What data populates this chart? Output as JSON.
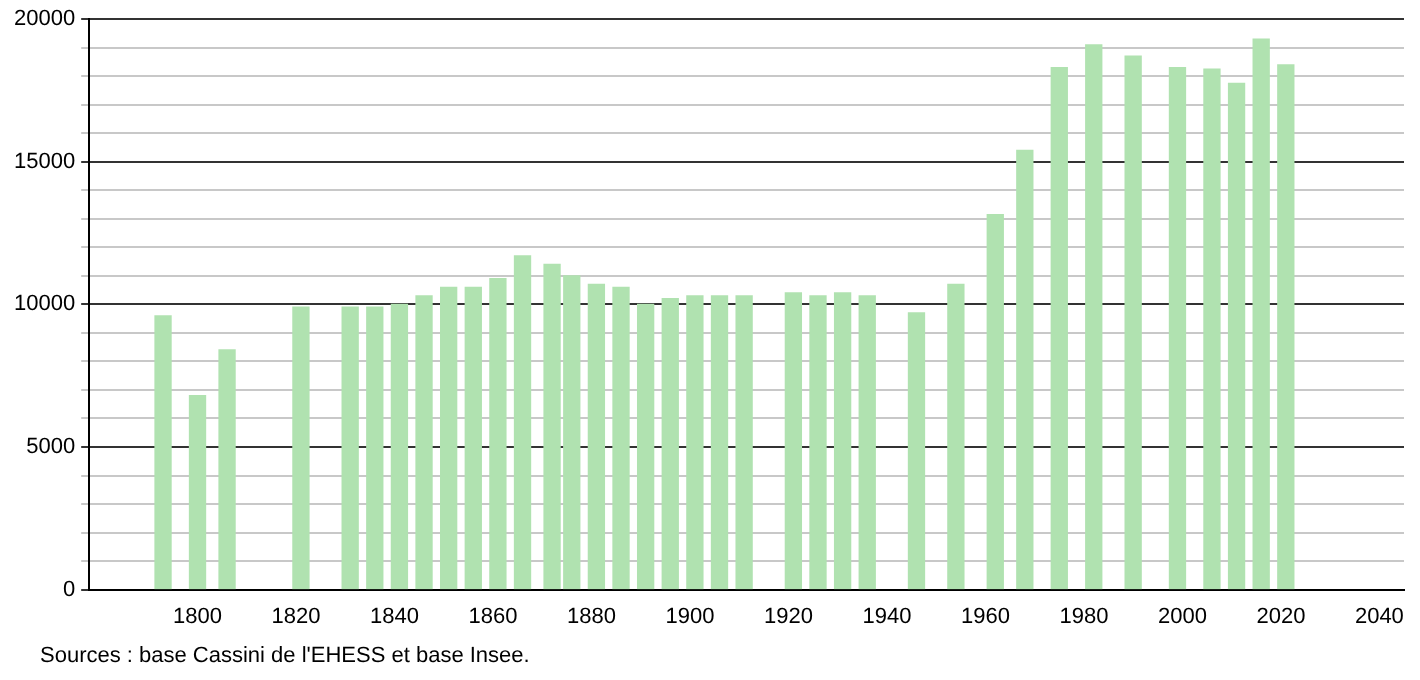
{
  "chart_data": {
    "type": "bar",
    "x": [
      1793,
      1800,
      1806,
      1821,
      1831,
      1836,
      1841,
      1846,
      1851,
      1856,
      1861,
      1866,
      1872,
      1876,
      1881,
      1886,
      1891,
      1896,
      1901,
      1906,
      1911,
      1921,
      1926,
      1931,
      1936,
      1946,
      1954,
      1962,
      1968,
      1975,
      1982,
      1990,
      1999,
      2006,
      2011,
      2016,
      2021
    ],
    "values": [
      9600,
      6800,
      8400,
      9900,
      9900,
      9900,
      10000,
      10300,
      10600,
      10600,
      10900,
      11700,
      11400,
      11000,
      10700,
      10600,
      10000,
      10200,
      10300,
      10300,
      10300,
      10400,
      10300,
      10400,
      10300,
      9700,
      10700,
      13150,
      15400,
      18300,
      19100,
      18700,
      18300,
      18250,
      17750,
      19300,
      18400
    ],
    "color": "#b0e2b0",
    "xlim": [
      1778,
      2045
    ],
    "xticks": [
      1800,
      1820,
      1840,
      1860,
      1880,
      1900,
      1920,
      1940,
      1960,
      1980,
      2000,
      2020,
      2040
    ],
    "ylim": [
      0,
      20000
    ],
    "yticks": [
      0,
      {
        "value": 1000,
        "label": null
      },
      {
        "value": 2000,
        "label": null
      },
      {
        "value": 3000,
        "label": null
      },
      {
        "value": 4000,
        "label": null
      },
      5000,
      {
        "value": 6000,
        "label": null
      },
      {
        "value": 7000,
        "label": null
      },
      {
        "value": 8000,
        "label": null
      },
      {
        "value": 9000,
        "label": null
      },
      10000,
      {
        "value": 11000,
        "label": null
      },
      {
        "value": 12000,
        "label": null
      },
      {
        "value": 13000,
        "label": null
      },
      {
        "value": 14000,
        "label": null
      },
      15000,
      {
        "value": 16000,
        "label": null
      },
      {
        "value": 17000,
        "label": null
      },
      {
        "value": 18000,
        "label": null
      },
      {
        "value": 19000,
        "label": null
      },
      20000
    ],
    "grid": "y",
    "legend": false,
    "annotations": [
      "Sources : base Cassini de l'EHESS et base Insee."
    ]
  }
}
